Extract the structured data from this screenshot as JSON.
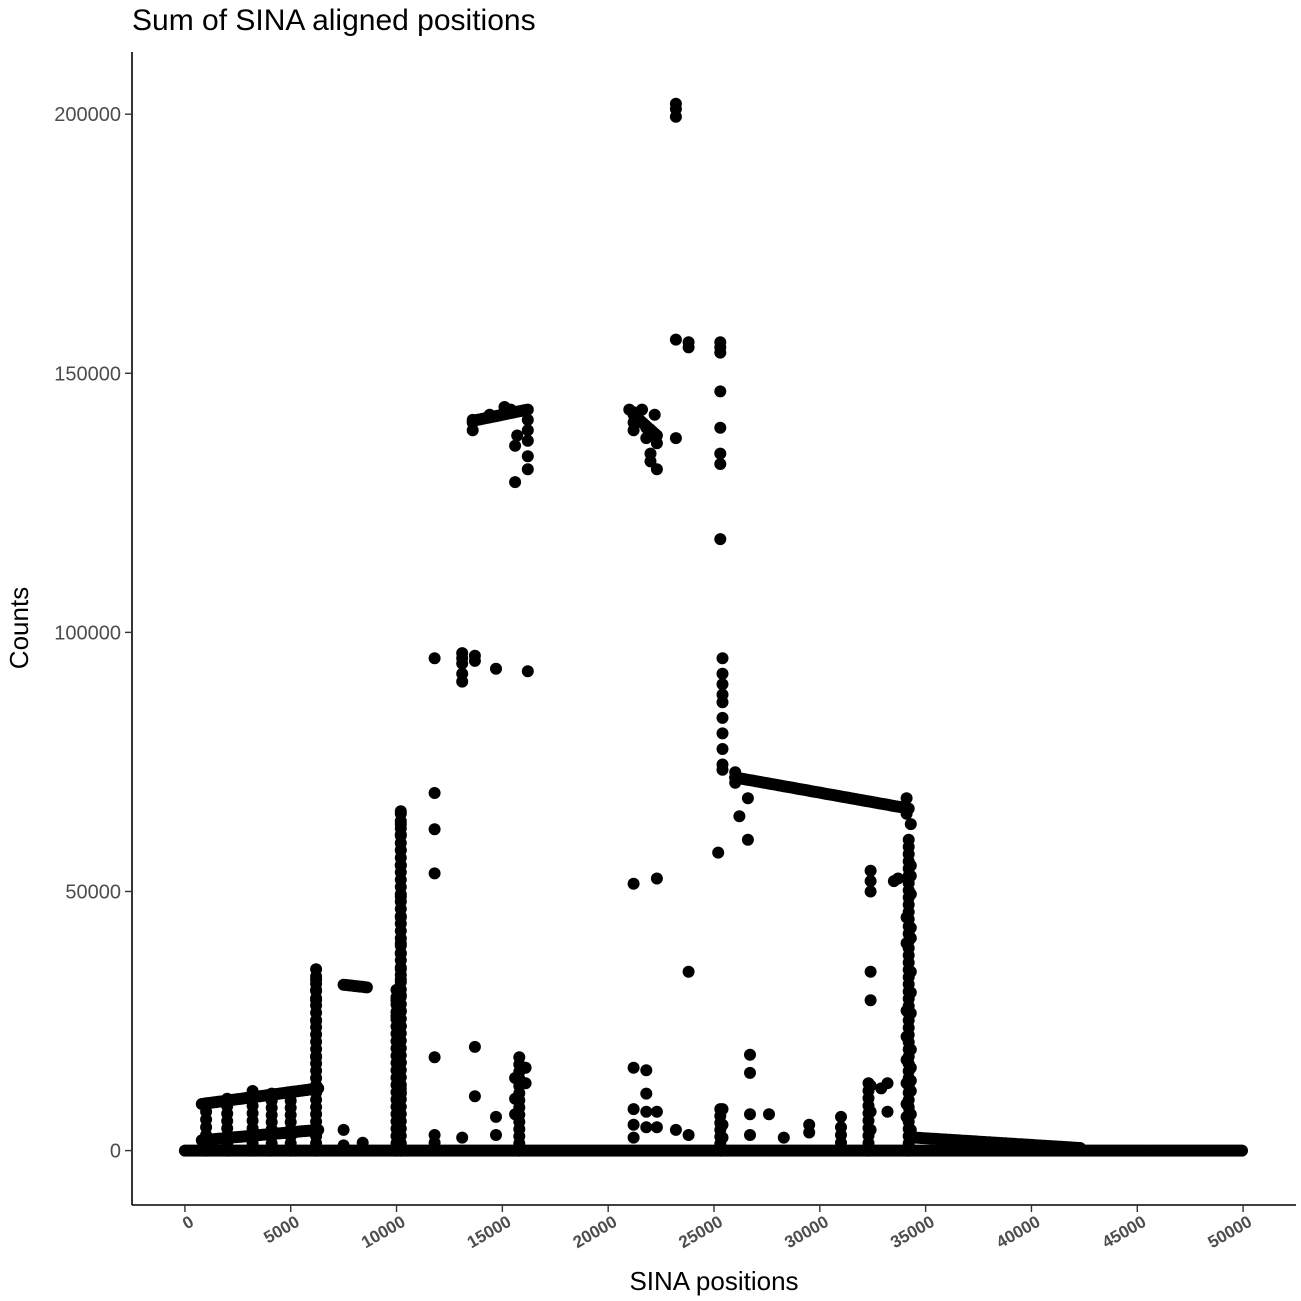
{
  "chart_data": {
    "type": "scatter",
    "title": "Sum of SINA aligned positions",
    "xlabel": "SINA positions",
    "ylabel": "Counts",
    "xlim": [
      -2500,
      52500
    ],
    "ylim": [
      -10500,
      212000
    ],
    "x_ticks": [
      0,
      5000,
      10000,
      15000,
      20000,
      25000,
      30000,
      35000,
      40000,
      45000,
      50000
    ],
    "x_tick_labels": [
      "0",
      "5000",
      "10000",
      "15000",
      "20000",
      "25000",
      "30000",
      "35000",
      "40000",
      "45000",
      "50000"
    ],
    "y_ticks": [
      0,
      50000,
      100000,
      150000,
      200000
    ],
    "y_tick_labels": [
      "0",
      "50000",
      "100000",
      "150000",
      "200000"
    ],
    "grid": false,
    "legend": "none",
    "point_color": "#000000",
    "baseline": {
      "x_from": 0,
      "x_to": 50000,
      "y": 0
    },
    "segments": [
      {
        "x_from": 800,
        "x_to": 6300,
        "y_from": 9000,
        "y_to": 12000
      },
      {
        "x_from": 800,
        "x_to": 6300,
        "y_from": 2000,
        "y_to": 4000
      },
      {
        "x_from": 7500,
        "x_to": 8600,
        "y_from": 32000,
        "y_to": 31500
      },
      {
        "x_from": 13800,
        "x_to": 16200,
        "y_from": 141000,
        "y_to": 143000
      },
      {
        "x_from": 21200,
        "x_to": 22300,
        "y_from": 142000,
        "y_to": 138000
      },
      {
        "x_from": 26000,
        "x_to": 34200,
        "y_from": 72000,
        "y_to": 66000
      },
      {
        "x_from": 34500,
        "x_to": 42300,
        "y_from": 2500,
        "y_to": 500
      }
    ],
    "columns": [
      {
        "x": 1000,
        "y_min": 0,
        "y_max": 9000
      },
      {
        "x": 2000,
        "y_min": 0,
        "y_max": 10000
      },
      {
        "x": 3200,
        "y_min": 0,
        "y_max": 11500
      },
      {
        "x": 4100,
        "y_min": 0,
        "y_max": 11000
      },
      {
        "x": 5000,
        "y_min": 0,
        "y_max": 11000
      },
      {
        "x": 6200,
        "y_min": 0,
        "y_max": 35000
      },
      {
        "x": 10000,
        "y_min": 0,
        "y_max": 31000
      },
      {
        "x": 10200,
        "y_min": 0,
        "y_max": 65000
      },
      {
        "x": 25300,
        "y_min": 0,
        "y_max": 8000
      },
      {
        "x": 32300,
        "y_min": 0,
        "y_max": 13000
      },
      {
        "x": 34200,
        "y_min": 0,
        "y_max": 60000
      },
      {
        "x": 15800,
        "y_min": 0,
        "y_max": 18000
      }
    ],
    "points": [
      [
        6200,
        18000
      ],
      [
        6200,
        25000
      ],
      [
        6200,
        29000
      ],
      [
        6200,
        31000
      ],
      [
        6200,
        33000
      ],
      [
        10000,
        26000
      ],
      [
        10000,
        29000
      ],
      [
        10200,
        11000
      ],
      [
        10200,
        12000
      ],
      [
        10200,
        17000
      ],
      [
        10200,
        24000
      ],
      [
        10200,
        27000
      ],
      [
        10200,
        30000
      ],
      [
        10200,
        33000
      ],
      [
        10200,
        35000
      ],
      [
        10200,
        38000
      ],
      [
        10200,
        40000
      ],
      [
        10200,
        45000
      ],
      [
        10200,
        49000
      ],
      [
        10200,
        55000
      ],
      [
        10200,
        58000
      ],
      [
        10200,
        61000
      ],
      [
        10200,
        63000
      ],
      [
        10200,
        65500
      ],
      [
        11800,
        95000
      ],
      [
        11800,
        69000
      ],
      [
        11800,
        62000
      ],
      [
        11800,
        53500
      ],
      [
        11800,
        18000
      ],
      [
        11800,
        3000
      ],
      [
        11800,
        1500
      ],
      [
        13100,
        96000
      ],
      [
        13100,
        95000
      ],
      [
        13100,
        94000
      ],
      [
        13100,
        92000
      ],
      [
        13100,
        90500
      ],
      [
        13100,
        2500
      ],
      [
        13700,
        95500
      ],
      [
        13700,
        94500
      ],
      [
        13700,
        20000
      ],
      [
        13700,
        10500
      ],
      [
        14700,
        93000
      ],
      [
        14700,
        6500
      ],
      [
        14700,
        3000
      ],
      [
        16200,
        92500
      ],
      [
        16200,
        141000
      ],
      [
        16200,
        139000
      ],
      [
        16200,
        137000
      ],
      [
        16200,
        134000
      ],
      [
        16200,
        131500
      ],
      [
        15600,
        129000
      ],
      [
        15600,
        136000
      ],
      [
        15700,
        138000
      ],
      [
        15600,
        14000
      ],
      [
        15600,
        10000
      ],
      [
        15600,
        7000
      ],
      [
        16100,
        16000
      ],
      [
        16100,
        13000
      ],
      [
        13600,
        141000
      ],
      [
        13600,
        140500
      ],
      [
        13600,
        139000
      ],
      [
        21200,
        142500
      ],
      [
        21200,
        140500
      ],
      [
        21200,
        139000
      ],
      [
        21200,
        51500
      ],
      [
        21200,
        16000
      ],
      [
        21200,
        8000
      ],
      [
        21200,
        5000
      ],
      [
        21200,
        2500
      ],
      [
        21800,
        139500
      ],
      [
        21800,
        137500
      ],
      [
        21800,
        15500
      ],
      [
        21800,
        11000
      ],
      [
        21800,
        7500
      ],
      [
        21800,
        4500
      ],
      [
        22000,
        134500
      ],
      [
        22000,
        133000
      ],
      [
        22300,
        131500
      ],
      [
        22300,
        136500
      ],
      [
        22300,
        52500
      ],
      [
        22300,
        7500
      ],
      [
        22300,
        4500
      ],
      [
        23200,
        202000
      ],
      [
        23200,
        201000
      ],
      [
        23200,
        199500
      ],
      [
        23200,
        156500
      ],
      [
        23200,
        137500
      ],
      [
        23200,
        4000
      ],
      [
        23800,
        156000
      ],
      [
        23800,
        155000
      ],
      [
        23800,
        34500
      ],
      [
        23800,
        3000
      ],
      [
        25300,
        156000
      ],
      [
        25300,
        155000
      ],
      [
        25300,
        154000
      ],
      [
        25300,
        146500
      ],
      [
        25300,
        139500
      ],
      [
        25300,
        134500
      ],
      [
        25300,
        132500
      ],
      [
        25300,
        118000
      ],
      [
        25200,
        57500
      ],
      [
        25400,
        95000
      ],
      [
        25400,
        92000
      ],
      [
        25400,
        90000
      ],
      [
        25400,
        88000
      ],
      [
        25400,
        86500
      ],
      [
        25400,
        83500
      ],
      [
        25400,
        80500
      ],
      [
        25400,
        77500
      ],
      [
        25400,
        74500
      ],
      [
        25400,
        73500
      ],
      [
        25400,
        8000
      ],
      [
        25400,
        5000
      ],
      [
        25400,
        2500
      ],
      [
        26000,
        73000
      ],
      [
        26000,
        72000
      ],
      [
        26000,
        71000
      ],
      [
        26200,
        64500
      ],
      [
        26600,
        68000
      ],
      [
        26600,
        60000
      ],
      [
        26700,
        18500
      ],
      [
        26700,
        15000
      ],
      [
        26700,
        7000
      ],
      [
        26700,
        3000
      ],
      [
        27600,
        7000
      ],
      [
        28300,
        2500
      ],
      [
        29500,
        5000
      ],
      [
        29500,
        3500
      ],
      [
        31000,
        6500
      ],
      [
        31000,
        4500
      ],
      [
        31000,
        3000
      ],
      [
        31000,
        1500
      ],
      [
        32400,
        54000
      ],
      [
        32400,
        52000
      ],
      [
        32400,
        50000
      ],
      [
        32400,
        34500
      ],
      [
        32400,
        29000
      ],
      [
        32400,
        12500
      ],
      [
        32400,
        7500
      ],
      [
        32400,
        4000
      ],
      [
        32900,
        12000
      ],
      [
        33200,
        7500
      ],
      [
        33200,
        13000
      ],
      [
        33500,
        52000
      ],
      [
        33700,
        52500
      ],
      [
        34100,
        68000
      ],
      [
        34100,
        65000
      ],
      [
        34100,
        45000
      ],
      [
        34100,
        40000
      ],
      [
        34100,
        27000
      ],
      [
        34100,
        22000
      ],
      [
        34100,
        17500
      ],
      [
        34100,
        13000
      ],
      [
        34100,
        9000
      ],
      [
        34100,
        6500
      ],
      [
        34300,
        63000
      ],
      [
        34300,
        55000
      ],
      [
        34300,
        53000
      ],
      [
        34300,
        49500
      ],
      [
        34300,
        43000
      ],
      [
        34300,
        41000
      ],
      [
        34300,
        34500
      ],
      [
        34300,
        30500
      ],
      [
        34300,
        26500
      ],
      [
        34300,
        19500
      ],
      [
        34300,
        16000
      ],
      [
        34300,
        13500
      ],
      [
        34300,
        11500
      ],
      [
        34300,
        7000
      ],
      [
        34300,
        4000
      ],
      [
        7500,
        4000
      ],
      [
        7500,
        1000
      ],
      [
        8400,
        1500
      ],
      [
        21000,
        143000
      ],
      [
        21600,
        143000
      ],
      [
        22200,
        142000
      ],
      [
        21400,
        141500
      ],
      [
        15100,
        143500
      ],
      [
        15400,
        143000
      ],
      [
        14400,
        142000
      ]
    ]
  }
}
